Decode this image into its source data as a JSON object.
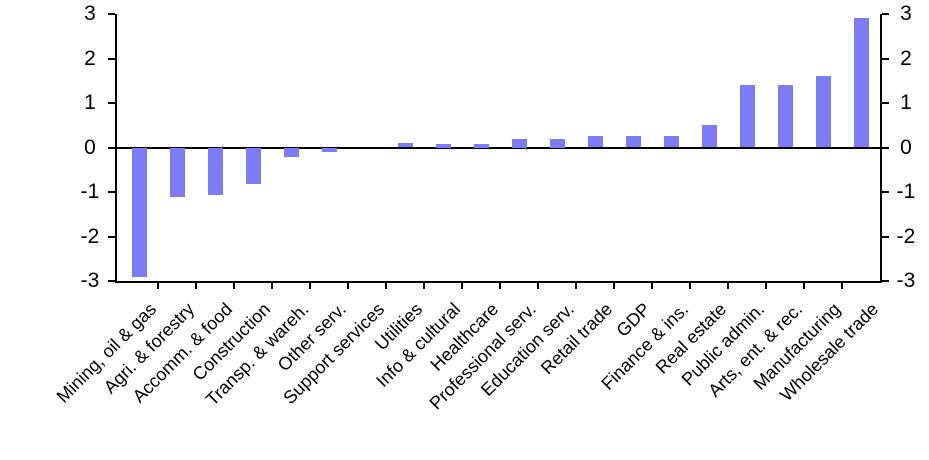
{
  "chart_data": {
    "type": "bar",
    "title": "",
    "xlabel": "",
    "ylabel": "",
    "categories": [
      "Mining, oil & gas",
      "Agri. & forestry",
      "Accomm. & food",
      "Construction",
      "Transp. & wareh.",
      "Other serv.",
      "Support services",
      "Utilities",
      "Info & cultural",
      "Healthcare",
      "Professional serv.",
      "Education serv.",
      "Retail trade",
      "GDP",
      "Finance & ins.",
      "Real estate",
      "Public admin.",
      "Arts, ent. & rec.",
      "Manufacturing",
      "Wholesale trade"
    ],
    "values": [
      -2.9,
      -1.1,
      -1.05,
      -0.8,
      -0.2,
      -0.08,
      0,
      0.1,
      0.08,
      0.08,
      0.2,
      0.2,
      0.25,
      0.25,
      0.25,
      0.5,
      1.4,
      1.4,
      1.6,
      2.9
    ],
    "ylim": [
      -3,
      3
    ],
    "yticks": [
      3,
      2,
      1,
      0,
      -1,
      -2,
      -3
    ],
    "ytick_labels_left": [
      "3",
      "2",
      "1",
      "0",
      "-1",
      "-2",
      "-3"
    ],
    "ytick_labels_right": [
      "3",
      "2",
      "1",
      "0",
      "-1",
      "-2",
      "-3"
    ],
    "legend_position": "none",
    "grid": false,
    "dual_y_axis": true,
    "colors": {
      "bar_fill": "#7C7CF8",
      "axis": "#000000",
      "text": "#000000",
      "background": "#FFFFFF"
    }
  }
}
